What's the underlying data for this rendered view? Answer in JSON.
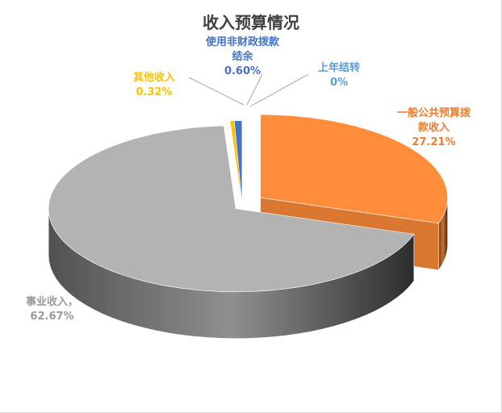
{
  "chart_data": {
    "type": "pie",
    "style": "3d-exploded",
    "title": "收入预算情况",
    "slices": [
      {
        "label": "上年结转",
        "value": 0,
        "percent_label": "0%",
        "color": "#5b9bd5"
      },
      {
        "label": "一般公共预算拨款收入",
        "value": 27.21,
        "percent_label": "27.21%",
        "color": "#ff8c3a"
      },
      {
        "label": "事业收入",
        "value": 62.67,
        "percent_label": "62.67%",
        "color": "#b3b3b3"
      },
      {
        "label": "其他收入",
        "value": 0.32,
        "percent_label": "0.32%",
        "color": "#ffc000"
      },
      {
        "label": "使用非财政拨款结余",
        "value": 0.6,
        "percent_label": "0.60%",
        "color": "#4472c4"
      }
    ],
    "labels_display": {
      "s0": [
        "上年结转",
        "0%"
      ],
      "s1": [
        "一般公共预算拨",
        "款收入",
        "27.21%"
      ],
      "s2": [
        "事业收入，",
        "62.67%"
      ],
      "s3": [
        "其他收入",
        "0.32%"
      ],
      "s4": [
        "使用非财政拨款",
        "结余",
        "0.60%"
      ]
    }
  }
}
